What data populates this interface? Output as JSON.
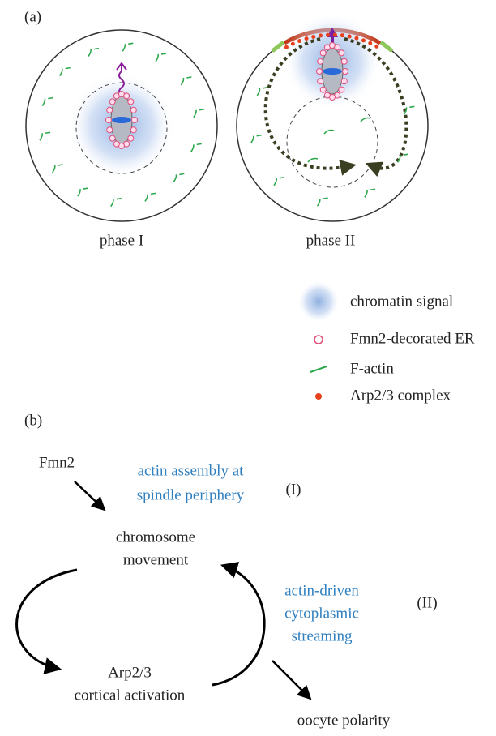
{
  "panel_a": {
    "label": "(a)",
    "phases": [
      "phase I",
      "phase II"
    ],
    "legend": [
      "chromatin signal",
      "Fmn2-decorated ER",
      "F-actin",
      "Arp2/3 complex"
    ]
  },
  "panel_b": {
    "label": "(b)",
    "nodes": {
      "fmn2": [
        "Fmn2"
      ],
      "chromosome": [
        "chromosome",
        "movement"
      ],
      "arp": [
        "Arp2/3",
        "cortical activation"
      ],
      "polarity": [
        "oocyte polarity"
      ]
    },
    "processes": [
      {
        "text": [
          "actin assembly at",
          "spindle periphery"
        ],
        "tag": "(I)"
      },
      {
        "text": [
          "actin-driven",
          "cytoplasmic",
          "streaming"
        ],
        "tag": "(II)"
      }
    ]
  }
}
